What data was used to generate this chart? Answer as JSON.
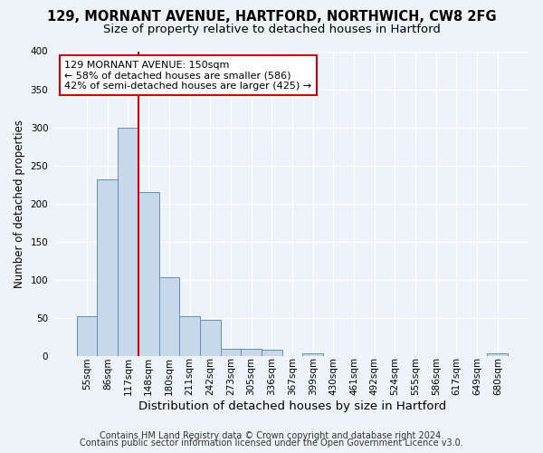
{
  "title": "129, MORNANT AVENUE, HARTFORD, NORTHWICH, CW8 2FG",
  "subtitle": "Size of property relative to detached houses in Hartford",
  "xlabel": "Distribution of detached houses by size in Hartford",
  "ylabel": "Number of detached properties",
  "footnote1": "Contains HM Land Registry data © Crown copyright and database right 2024.",
  "footnote2": "Contains public sector information licensed under the Open Government Licence v3.0.",
  "bins": [
    "55sqm",
    "86sqm",
    "117sqm",
    "148sqm",
    "180sqm",
    "211sqm",
    "242sqm",
    "273sqm",
    "305sqm",
    "336sqm",
    "367sqm",
    "399sqm",
    "430sqm",
    "461sqm",
    "492sqm",
    "524sqm",
    "555sqm",
    "586sqm",
    "617sqm",
    "649sqm",
    "680sqm"
  ],
  "values": [
    52,
    232,
    300,
    215,
    103,
    52,
    48,
    10,
    10,
    8,
    0,
    4,
    0,
    0,
    0,
    0,
    0,
    0,
    0,
    0,
    4
  ],
  "bar_color": "#c8d8ea",
  "bar_edge_color": "#6090b8",
  "property_line_bin_index": 3,
  "property_line_color": "#cc0000",
  "annotation_line1": "129 MORNANT AVENUE: 150sqm",
  "annotation_line2": "← 58% of detached houses are smaller (586)",
  "annotation_line3": "42% of semi-detached houses are larger (425) →",
  "annotation_box_facecolor": "#ffffff",
  "annotation_box_edgecolor": "#cc0000",
  "ylim": [
    0,
    400
  ],
  "yticks": [
    0,
    50,
    100,
    150,
    200,
    250,
    300,
    350,
    400
  ],
  "bg_color": "#eef3fa",
  "plot_bg_color": "#eef3fa",
  "grid_color": "#ffffff",
  "title_fontsize": 10.5,
  "subtitle_fontsize": 9.5,
  "xlabel_fontsize": 9.5,
  "ylabel_fontsize": 8.5,
  "tick_fontsize": 7.5,
  "annot_fontsize": 8,
  "footnote_fontsize": 7
}
